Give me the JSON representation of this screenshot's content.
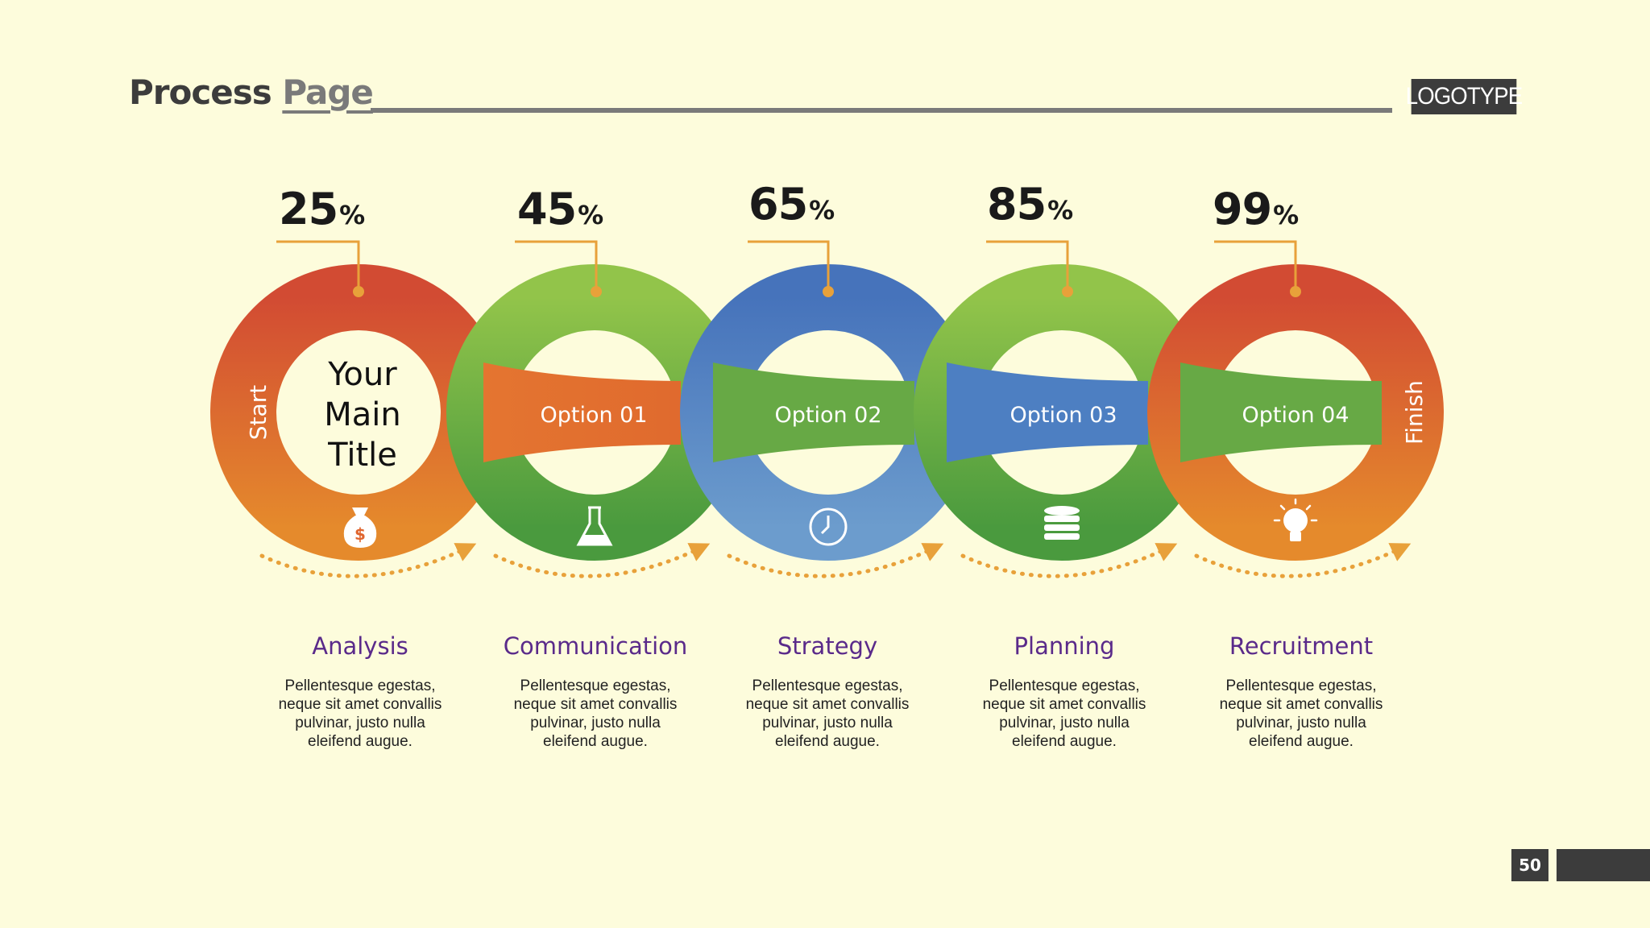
{
  "header": {
    "title_part1": "Process",
    "title_part2": "Page",
    "logo": "LOGOTYPE"
  },
  "main": {
    "main_title_lines": [
      "Your",
      "Main",
      "Title"
    ],
    "start_label": "Start",
    "finish_label": "Finish",
    "percent_sign": "%",
    "steps": [
      {
        "percent": "25",
        "option": "",
        "label": "Analysis",
        "icon": "money-bag-icon",
        "description": "Pellentesque egestas,\nneque sit amet convallis\npulvinar, justo nulla\neleifend augue.",
        "color": "#e0652e"
      },
      {
        "percent": "45",
        "option": "Option 01",
        "label": "Communication",
        "icon": "flask-icon",
        "description": "Pellentesque egestas,\nneque sit amet convallis\npulvinar, justo nulla\neleifend augue.",
        "color": "#6fad46"
      },
      {
        "percent": "65",
        "option": "Option 02",
        "label": "Strategy",
        "icon": "clock-icon",
        "description": "Pellentesque egestas,\nneque sit amet convallis\npulvinar, justo nulla\neleifend augue.",
        "color": "#4f7fc0"
      },
      {
        "percent": "85",
        "option": "Option 03",
        "label": "Planning",
        "icon": "database-icon",
        "description": "Pellentesque egestas,\nneque sit amet convallis\npulvinar, justo nulla\neleifend augue.",
        "color": "#6fad46"
      },
      {
        "percent": "99",
        "option": "Option 04",
        "label": "Recruitment",
        "icon": "lightbulb-icon",
        "description": "Pellentesque egestas,\nneque sit amet convallis\npulvinar, justo nulla\neleifend augue.",
        "color": "#e0652e"
      }
    ]
  },
  "footer": {
    "page_number": "50"
  },
  "colors": {
    "background": "#fdfcdc",
    "accent_orange": "#e8a13a",
    "red": "#d24b33",
    "orange": "#e58a2c",
    "green": "#6fad46",
    "blue": "#4f7fc0",
    "purple": "#5a2a8a",
    "dark_gray": "#3c3c3c"
  }
}
